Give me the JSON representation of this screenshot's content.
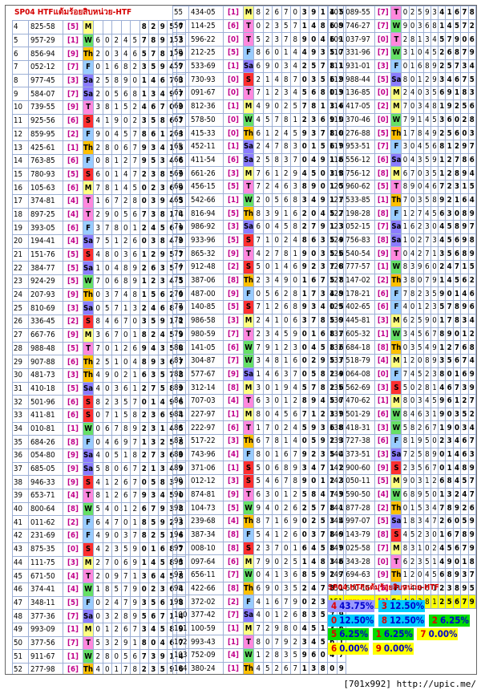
{
  "header": {
    "title": "SP04 HTFแต้มร้อยสิบหน่วย-HTF"
  },
  "columns": [
    [
      [
        "4",
        "825-58",
        "5",
        "M",
        "82957"
      ],
      [
        "5",
        "957-29",
        "1",
        "W",
        "60245",
        "78913"
      ],
      [
        "6",
        "856-94",
        "9",
        "Th",
        "20346",
        "57819"
      ],
      [
        "7",
        "052-12",
        "7",
        "F",
        "01682",
        "35947"
      ],
      [
        "8",
        "977-45",
        "3",
        "Sa",
        "25890",
        "14673"
      ],
      [
        "9",
        "584-07",
        "7",
        "Sa",
        "20568",
        "13497"
      ],
      [
        "10",
        "739-55",
        "9",
        "T",
        "38152",
        "46709"
      ],
      [
        "11",
        "925-56",
        "6",
        "S",
        "41902",
        "35867"
      ],
      [
        "12",
        "859-95",
        "2",
        "F",
        "90457",
        "86123"
      ],
      [
        "13",
        "425-61",
        "1",
        "Th",
        "28067",
        "93415"
      ],
      [
        "14",
        "763-85",
        "6",
        "F",
        "08127",
        "95346"
      ],
      [
        "15",
        "780-93",
        "5",
        "S",
        "60147",
        "23859"
      ],
      [
        "16",
        "105-63",
        "6",
        "M",
        "78145",
        "02369"
      ],
      [
        "17",
        "374-81",
        "4",
        "T",
        "16728",
        "03945"
      ],
      [
        "18",
        "897-25",
        "4",
        "T",
        "29056",
        "73814"
      ],
      [
        "19",
        "393-05",
        "6",
        "F",
        "37801",
        "24569"
      ],
      [
        "20",
        "194-41",
        "4",
        "Sa",
        "75126",
        "03849"
      ],
      [
        "21",
        "151-76",
        "5",
        "S",
        "48036",
        "12957"
      ],
      [
        "22",
        "384-77",
        "5",
        "Sa",
        "10489",
        "26357"
      ],
      [
        "23",
        "924-29",
        "5",
        "W",
        "70689",
        "12345"
      ],
      [
        "24",
        "207-93",
        "9",
        "Th",
        "03748",
        "15629"
      ],
      [
        "25",
        "810-69",
        "3",
        "Sa",
        "05713",
        "24689"
      ],
      [
        "26",
        "336-45",
        "2",
        "S",
        "84670",
        "35912"
      ],
      [
        "27",
        "667-76",
        "9",
        "M",
        "36701",
        "82459"
      ],
      [
        "28",
        "988-48",
        "5",
        "T",
        "70126",
        "94358"
      ],
      [
        "29",
        "907-88",
        "6",
        "Th",
        "25104",
        "89367"
      ],
      [
        "30",
        "481-73",
        "3",
        "Th",
        "49021",
        "63578"
      ],
      [
        "31",
        "410-18",
        "5",
        "Sa",
        "40361",
        "27589"
      ],
      [
        "32",
        "501-96",
        "6",
        "S",
        "82357",
        "01496"
      ],
      [
        "33",
        "411-81",
        "6",
        "S",
        "07158",
        "23694"
      ],
      [
        "34",
        "010-81",
        "1",
        "W",
        "06789",
        "23145"
      ],
      [
        "35",
        "684-26",
        "8",
        "F",
        "04697",
        "13258"
      ],
      [
        "36",
        "054-80",
        "9",
        "Sa",
        "40518",
        "27369"
      ],
      [
        "37",
        "685-05",
        "9",
        "Sa",
        "58067",
        "21349"
      ],
      [
        "38",
        "946-33",
        "9",
        "S",
        "41267",
        "05839"
      ],
      [
        "39",
        "653-71",
        "4",
        "T",
        "81267",
        "93450"
      ],
      [
        "40",
        "800-64",
        "8",
        "W",
        "54012",
        "67938"
      ],
      [
        "41",
        "011-62",
        "2",
        "F",
        "64701",
        "85923"
      ],
      [
        "42",
        "231-69",
        "6",
        "F",
        "49037",
        "82516"
      ],
      [
        "43",
        "875-35",
        "0",
        "S",
        "42359",
        "01687"
      ],
      [
        "44",
        "111-75",
        "3",
        "M",
        "27069",
        "14583"
      ],
      [
        "45",
        "671-50",
        "4",
        "T",
        "20971",
        "36458"
      ],
      [
        "46",
        "374-41",
        "4",
        "W",
        "18579",
        "02364"
      ],
      [
        "47",
        "348-11",
        "5",
        "F",
        "02479",
        "35618"
      ],
      [
        "48",
        "377-36",
        "7",
        "Sa",
        "03289",
        "56714"
      ],
      [
        "49",
        "993-09",
        "1",
        "M",
        "01267",
        "34589"
      ],
      [
        "50",
        "377-56",
        "7",
        "T",
        "53291",
        "80467"
      ],
      [
        "51",
        "911-67",
        "1",
        "W",
        "28056",
        "73914"
      ],
      [
        "52",
        "277-98",
        "6",
        "Th",
        "40178",
        "23596"
      ],
      [
        "53",
        "028-76",
        "0",
        "Sa",
        "26381",
        "57904"
      ],
      [
        "54",
        "612-20",
        "9",
        "S",
        "41278",
        "03569"
      ]
    ],
    [
      [
        "55",
        "434-05",
        "1",
        "M",
        "82670",
        "39145"
      ],
      [
        "56",
        "114-25",
        "6",
        "T",
        "02357",
        "14869"
      ],
      [
        "57",
        "596-22",
        "0",
        "T",
        "52378",
        "90461"
      ],
      [
        "58",
        "212-25",
        "5",
        "F",
        "86014",
        "49357"
      ],
      [
        "59",
        "533-69",
        "1",
        "Sa",
        "69034",
        "25781"
      ],
      [
        "60",
        "730-93",
        "0",
        "S",
        "21487",
        "03569"
      ],
      [
        "61",
        "091-67",
        "0",
        "T",
        "71234",
        "56809"
      ],
      [
        "62",
        "812-36",
        "1",
        "M",
        "49025",
        "78136"
      ],
      [
        "63",
        "578-50",
        "0",
        "W",
        "45781",
        "23690"
      ],
      [
        "64",
        "415-33",
        "0",
        "Th",
        "61245",
        "93780"
      ],
      [
        "65",
        "452-11",
        "1",
        "Sa",
        "24783",
        "01569"
      ],
      [
        "66",
        "411-54",
        "6",
        "Sa",
        "25837",
        "04916"
      ],
      [
        "67",
        "661-26",
        "3",
        "M",
        "76129",
        "45038"
      ],
      [
        "68",
        "456-15",
        "5",
        "T",
        "72463",
        "89015"
      ],
      [
        "69",
        "542-66",
        "1",
        "W",
        "20568",
        "34917"
      ],
      [
        "70",
        "816-94",
        "5",
        "Th",
        "83916",
        "20457"
      ],
      [
        "71",
        "986-92",
        "3",
        "Sa",
        "60458",
        "27913"
      ],
      [
        "72",
        "933-96",
        "5",
        "S",
        "71024",
        "86359"
      ],
      [
        "73",
        "865-32",
        "9",
        "T",
        "42781",
        "90356"
      ],
      [
        "74",
        "912-48",
        "2",
        "S",
        "50146",
        "92378"
      ],
      [
        "75",
        "387-06",
        "8",
        "Th",
        "23490",
        "16758"
      ],
      [
        "76",
        "487-00",
        "9",
        "F",
        "05628",
        "17349"
      ],
      [
        "77",
        "140-85",
        "5",
        "S",
        "71268",
        "93405"
      ],
      [
        "78",
        "986-58",
        "3",
        "M",
        "24106",
        "37859"
      ],
      [
        "79",
        "980-59",
        "7",
        "T",
        "23459",
        "01687"
      ],
      [
        "80",
        "141-05",
        "6",
        "W",
        "79123",
        "04586"
      ],
      [
        "81",
        "304-87",
        "7",
        "W",
        "34816",
        "02957"
      ],
      [
        "82",
        "577-67",
        "9",
        "Sa",
        "14637",
        "05829"
      ],
      [
        "83",
        "312-14",
        "8",
        "M",
        "30194",
        "57826"
      ],
      [
        "84",
        "707-03",
        "4",
        "T",
        "63012",
        "89457"
      ],
      [
        "85",
        "227-97",
        "1",
        "M",
        "80456",
        "71239"
      ],
      [
        "86",
        "222-97",
        "6",
        "T",
        "17024",
        "59368"
      ],
      [
        "87",
        "517-22",
        "3",
        "Th",
        "67814",
        "05923"
      ],
      [
        "88",
        "743-96",
        "4",
        "F",
        "80167",
        "92354"
      ],
      [
        "89",
        "371-06",
        "1",
        "S",
        "50689",
        "34712"
      ],
      [
        "90",
        "012-12",
        "3",
        "S",
        "54678",
        "90123"
      ],
      [
        "91",
        "874-81",
        "9",
        "T",
        "63012",
        "58479"
      ],
      [
        "92",
        "104-73",
        "5",
        "W",
        "94026",
        "25781"
      ],
      [
        "93",
        "239-68",
        "4",
        "Th",
        "87169",
        "02534"
      ],
      [
        "94",
        "387-34",
        "8",
        "F",
        "54126",
        "03789"
      ],
      [
        "95",
        "008-10",
        "8",
        "S",
        "23701",
        "64589"
      ],
      [
        "96",
        "097-64",
        "6",
        "M",
        "79025",
        "14836"
      ],
      [
        "97",
        "656-11",
        "7",
        "W",
        "04136",
        "85927"
      ],
      [
        "98",
        "422-66",
        "8",
        "Th",
        "69035",
        "24781"
      ],
      [
        "99",
        "372-02",
        "2",
        "F",
        "41679",
        "02358"
      ],
      [
        "100",
        "377-42",
        "7",
        "Sa",
        "40126",
        "83579"
      ],
      [
        "101",
        "100-59",
        "1",
        "M",
        "72980",
        "45136"
      ],
      [
        "102",
        "993-43",
        "1",
        "T",
        "80792",
        "34561"
      ],
      [
        "103",
        "752-09",
        "4",
        "W",
        "12835",
        "96047"
      ],
      [
        "104",
        "380-24",
        "1",
        "Th",
        "45267",
        "13809"
      ],
      [
        "105",
        "112-49",
        "4",
        "Th",
        "23790",
        "56148"
      ],
      [
        "106",
        "062-23",
        "8",
        "S",
        "45037",
        "27189"
      ]
    ],
    [
      [
        "107",
        "089-55",
        "7",
        "T",
        "02593",
        "41678"
      ],
      [
        "108",
        "746-27",
        "7",
        "W",
        "90368",
        "14572"
      ],
      [
        "109",
        "037-97",
        "0",
        "T",
        "28134",
        "57906"
      ],
      [
        "110",
        "331-96",
        "7",
        "W",
        "31045",
        "26879"
      ],
      [
        "111",
        "931-01",
        "3",
        "F",
        "01689",
        "25734"
      ],
      [
        "112",
        "988-44",
        "5",
        "Sa",
        "80129",
        "34675"
      ],
      [
        "113",
        "136-85",
        "0",
        "M",
        "24035",
        "69183"
      ],
      [
        "114",
        "417-05",
        "2",
        "M",
        "70348",
        "19256"
      ],
      [
        "115",
        "370-46",
        "0",
        "W",
        "79145",
        "36028"
      ],
      [
        "116",
        "276-88",
        "5",
        "Th",
        "17849",
        "25603"
      ],
      [
        "117",
        "953-51",
        "7",
        "F",
        "30456",
        "81297"
      ],
      [
        "118",
        "556-12",
        "6",
        "Sa",
        "04359",
        "12786"
      ],
      [
        "119",
        "756-12",
        "8",
        "M",
        "67035",
        "12894"
      ],
      [
        "120",
        "960-62",
        "5",
        "T",
        "89046",
        "72315"
      ],
      [
        "121",
        "533-85",
        "1",
        "Th",
        "70358",
        "92164"
      ],
      [
        "122",
        "198-28",
        "8",
        "F",
        "12745",
        "63089"
      ],
      [
        "123",
        "052-15",
        "7",
        "Sa",
        "16230",
        "45897"
      ],
      [
        "124",
        "756-83",
        "8",
        "Sa",
        "10273",
        "45698"
      ],
      [
        "125",
        "540-54",
        "9",
        "T",
        "04271",
        "35689"
      ],
      [
        "126",
        "777-57",
        "1",
        "W",
        "83960",
        "24715"
      ],
      [
        "127",
        "147-02",
        "2",
        "Th",
        "38079",
        "14562"
      ],
      [
        "128",
        "178-21",
        "6",
        "F",
        "78235",
        "90146"
      ],
      [
        "129",
        "402-65",
        "6",
        "F",
        "40123",
        "57896"
      ],
      [
        "130",
        "445-81",
        "3",
        "M",
        "62590",
        "17834"
      ],
      [
        "131",
        "605-32",
        "1",
        "W",
        "34567",
        "89012"
      ],
      [
        "132",
        "684-18",
        "8",
        "Th",
        "03549",
        "12768"
      ],
      [
        "133",
        "518-79",
        "4",
        "M",
        "12089",
        "35674"
      ],
      [
        "134",
        "064-08",
        "0",
        "F",
        "74523",
        "80169"
      ],
      [
        "135",
        "562-69",
        "3",
        "S",
        "50281",
        "46739"
      ],
      [
        "136",
        "470-62",
        "1",
        "M",
        "80345",
        "96127"
      ],
      [
        "137",
        "501-29",
        "6",
        "W",
        "84631",
        "90352"
      ],
      [
        "138",
        "418-31",
        "3",
        "W",
        "58267",
        "19034"
      ],
      [
        "139",
        "727-38",
        "6",
        "F",
        "81950",
        "23467"
      ],
      [
        "140",
        "373-51",
        "3",
        "Sa",
        "72589",
        "01463"
      ],
      [
        "141",
        "900-60",
        "9",
        "S",
        "23567",
        "01489"
      ],
      [
        "142",
        "050-11",
        "5",
        "M",
        "90312",
        "68457"
      ],
      [
        "143",
        "590-50",
        "4",
        "W",
        "68950",
        "13247"
      ],
      [
        "144",
        "877-28",
        "2",
        "Th",
        "01534",
        "78926"
      ],
      [
        "145",
        "997-07",
        "5",
        "Sa",
        "18347",
        "26059"
      ],
      [
        "146",
        "143-79",
        "8",
        "S",
        "45230",
        "16789"
      ],
      [
        "147",
        "025-58",
        "7",
        "M",
        "83102",
        "45679"
      ],
      [
        "148",
        "343-28",
        "0",
        "T",
        "62351",
        "49018"
      ],
      [
        "149",
        "694-63",
        "9",
        "Th",
        "12045",
        "68937"
      ],
      [
        "150",
        "500-15",
        "5",
        "F",
        "74061",
        "23895"
      ],
      [
        "151",
        "xxx-xx",
        "?",
        "Sa",
        "40381",
        "25679"
      ]
    ]
  ],
  "stats": {
    "title": "SP04 HTFแต้มร้อยสิบหน่วย-HTF",
    "rows": [
      [
        {
          "k": "4",
          "v": "43.75%",
          "bg": "#9999ff",
          "kc": "#e00000",
          "vc": "#0000cc"
        },
        {
          "k": "3",
          "v": "12.50%",
          "bg": "#00ccff",
          "kc": "#e00000",
          "vc": "#0000cc"
        }
      ],
      [
        {
          "k": "0",
          "v": "12.50%",
          "bg": "#00ccff",
          "kc": "#e00000",
          "vc": "#0000cc"
        },
        {
          "k": "8",
          "v": "12.50%",
          "bg": "#00ccff",
          "kc": "#e00000",
          "vc": "#0000cc"
        },
        {
          "k": "2",
          "v": "6.25%",
          "bg": "#00dd00",
          "kc": "#e00000",
          "vc": "#0000cc"
        }
      ],
      [
        {
          "k": "5",
          "v": "6.25%",
          "bg": "#00dd00",
          "kc": "#e00000",
          "vc": "#0000cc"
        },
        {
          "k": "1",
          "v": "6.25%",
          "bg": "#00dd00",
          "kc": "#e00000",
          "vc": "#0000cc"
        },
        {
          "k": "7",
          "v": "0.00%",
          "bg": "#ffff00",
          "kc": "#e00000",
          "vc": "#0000cc"
        }
      ],
      [
        {
          "k": "6",
          "v": "0.00%",
          "bg": "#ffff00",
          "kc": "#e00000",
          "vc": "#0000cc"
        },
        {
          "k": "9",
          "v": "0.00%",
          "bg": "#ffff00",
          "kc": "#e00000",
          "vc": "#0000cc"
        }
      ]
    ]
  },
  "footer": {
    "text": "[701x992] http://upic.me/"
  }
}
